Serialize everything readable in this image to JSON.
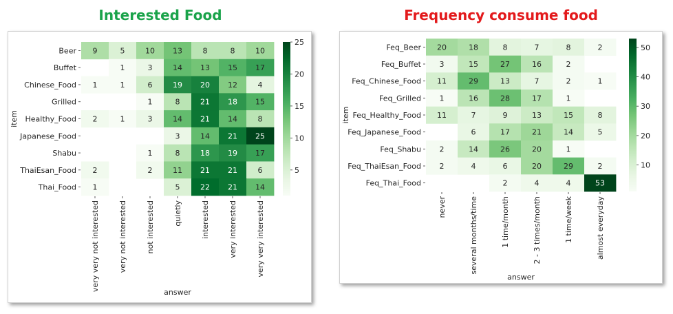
{
  "charts": [
    {
      "title": "Interested Food",
      "title_color": "#1aa34a",
      "chart_data": {
        "type": "heatmap",
        "colormap": "Greens",
        "xlabel": "answer",
        "ylabel": "item",
        "x_categories": [
          "very very not interested",
          "very not interested",
          "not interested",
          "quietly",
          "interested",
          "very interested",
          "very very interested"
        ],
        "y_categories": [
          "Beer",
          "Buffet",
          "Chinese_Food",
          "Grilled",
          "Healthy_Food",
          "Japanese_Food",
          "Shabu",
          "ThaiEsan_Food",
          "Thai_Food"
        ],
        "values": [
          [
            9,
            5,
            10,
            13,
            8,
            8,
            10
          ],
          [
            null,
            1,
            3,
            14,
            13,
            15,
            17
          ],
          [
            1,
            1,
            6,
            19,
            20,
            12,
            4
          ],
          [
            null,
            null,
            1,
            8,
            21,
            18,
            15
          ],
          [
            2,
            1,
            3,
            14,
            21,
            14,
            8
          ],
          [
            null,
            null,
            null,
            3,
            14,
            21,
            25
          ],
          [
            null,
            null,
            1,
            8,
            18,
            19,
            17
          ],
          [
            2,
            null,
            2,
            11,
            21,
            21,
            6
          ],
          [
            1,
            null,
            null,
            5,
            22,
            21,
            14
          ]
        ],
        "colorbar": {
          "min": 1,
          "max": 25,
          "ticks": [
            5,
            10,
            15,
            20,
            25
          ]
        }
      }
    },
    {
      "title": "Frequency consume food",
      "title_color": "#e31a1c",
      "chart_data": {
        "type": "heatmap",
        "colormap": "Greens",
        "xlabel": "answer",
        "ylabel": "item",
        "x_categories": [
          "never",
          "several months/time",
          "1 time/month",
          "2 - 3 times/month",
          "1 time/week",
          "almost everyday"
        ],
        "y_categories": [
          "Feq_Beer",
          "Feq_Buffet",
          "Feq_Chinese_Food",
          "Feq_Grilled",
          "Feq_Healthy_Food",
          "Feq_Japanese_Food",
          "Feq_Shabu",
          "Feq_ThaiEsan_Food",
          "Feq_Thai_Food"
        ],
        "values": [
          [
            20,
            18,
            8,
            7,
            8,
            2
          ],
          [
            3,
            15,
            27,
            16,
            2,
            null
          ],
          [
            11,
            29,
            13,
            7,
            2,
            1
          ],
          [
            1,
            16,
            28,
            17,
            1,
            null
          ],
          [
            11,
            7,
            9,
            13,
            15,
            8
          ],
          [
            null,
            6,
            17,
            21,
            14,
            5
          ],
          [
            2,
            14,
            26,
            20,
            1,
            null
          ],
          [
            2,
            4,
            6,
            20,
            29,
            2
          ],
          [
            null,
            null,
            2,
            4,
            4,
            53
          ]
        ],
        "colorbar": {
          "min": 1,
          "max": 53,
          "ticks": [
            10,
            20,
            30,
            40,
            50
          ]
        }
      }
    }
  ]
}
